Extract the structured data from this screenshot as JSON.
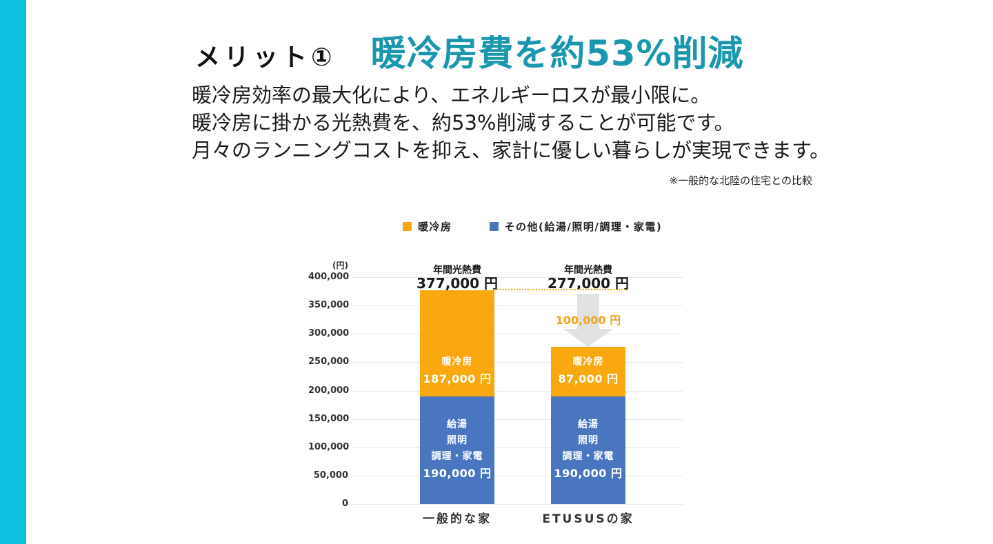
{
  "page": {
    "accent_bar_color": "#0CC0E1",
    "background_color": "#ffffff"
  },
  "header": {
    "label": "メリット①",
    "title": "暖冷房費を約53%削減",
    "title_color": "#1A96AD"
  },
  "body": {
    "lines": [
      "暖冷房効率の最大化により、エネルギーロスが最小限に。",
      "暖冷房に掛かる光熱費を、約53%削減することが可能です。",
      "月々のランニングコストを抑え、家計に優しい暮らしが実現できます。"
    ],
    "note": "※一般的な北陸の住宅との比較"
  },
  "chart_data": {
    "type": "bar",
    "stacked": true,
    "unit_label": "(円)",
    "ylim": [
      0,
      400000
    ],
    "ytick_step": 50000,
    "yticks": [
      "400,000",
      "350,000",
      "300,000",
      "250,000",
      "200,000",
      "150,000",
      "100,000",
      "50,000",
      "0"
    ],
    "grid": true,
    "legend_position": "top",
    "colors": {
      "orange": "#F9A90F",
      "blue": "#4A76C0"
    },
    "legend": [
      {
        "label": "暖冷房",
        "color": "#F9A90F"
      },
      {
        "label": "その他(給湯/照明/調理・家電)",
        "color": "#4A76C0"
      }
    ],
    "categories": [
      "一般的な家",
      "ETUSUSの家"
    ],
    "series": [
      {
        "name": "暖冷房",
        "color": "#F9A90F",
        "values": [
          187000,
          87000
        ]
      },
      {
        "name": "その他(給湯/照明/調理・家電)",
        "color": "#4A76C0",
        "values": [
          190000,
          190000
        ]
      }
    ],
    "bars": [
      {
        "category": "一般的な家",
        "total": 377000,
        "total_label_title": "年間光熱費",
        "total_label_value": "377,000 円",
        "segments": [
          {
            "name": "heating-cooling",
            "value": 187000,
            "color": "orange",
            "lines": [
              "暖冷房",
              "187,000 円"
            ]
          },
          {
            "name": "other-utilities",
            "value": 190000,
            "color": "blue",
            "lines": [
              "給湯",
              "照明",
              "調理・家電",
              "190,000 円"
            ]
          }
        ]
      },
      {
        "category": "ETUSUSの家",
        "total": 277000,
        "total_label_title": "年間光熱費",
        "total_label_value": "277,000 円",
        "segments": [
          {
            "name": "heating-cooling",
            "value": 87000,
            "color": "orange",
            "lines": [
              "暖冷房",
              "87,000 円"
            ]
          },
          {
            "name": "other-utilities",
            "value": 190000,
            "color": "blue",
            "lines": [
              "給湯",
              "照明",
              "調理・家電",
              "190,000 円"
            ]
          }
        ]
      }
    ],
    "annotation": {
      "diff_label": "100,000 円",
      "from_value": 377000,
      "to_value": 277000,
      "arrow_color": "#E2E2E2",
      "dotted_line_color": "#F3A712"
    }
  }
}
